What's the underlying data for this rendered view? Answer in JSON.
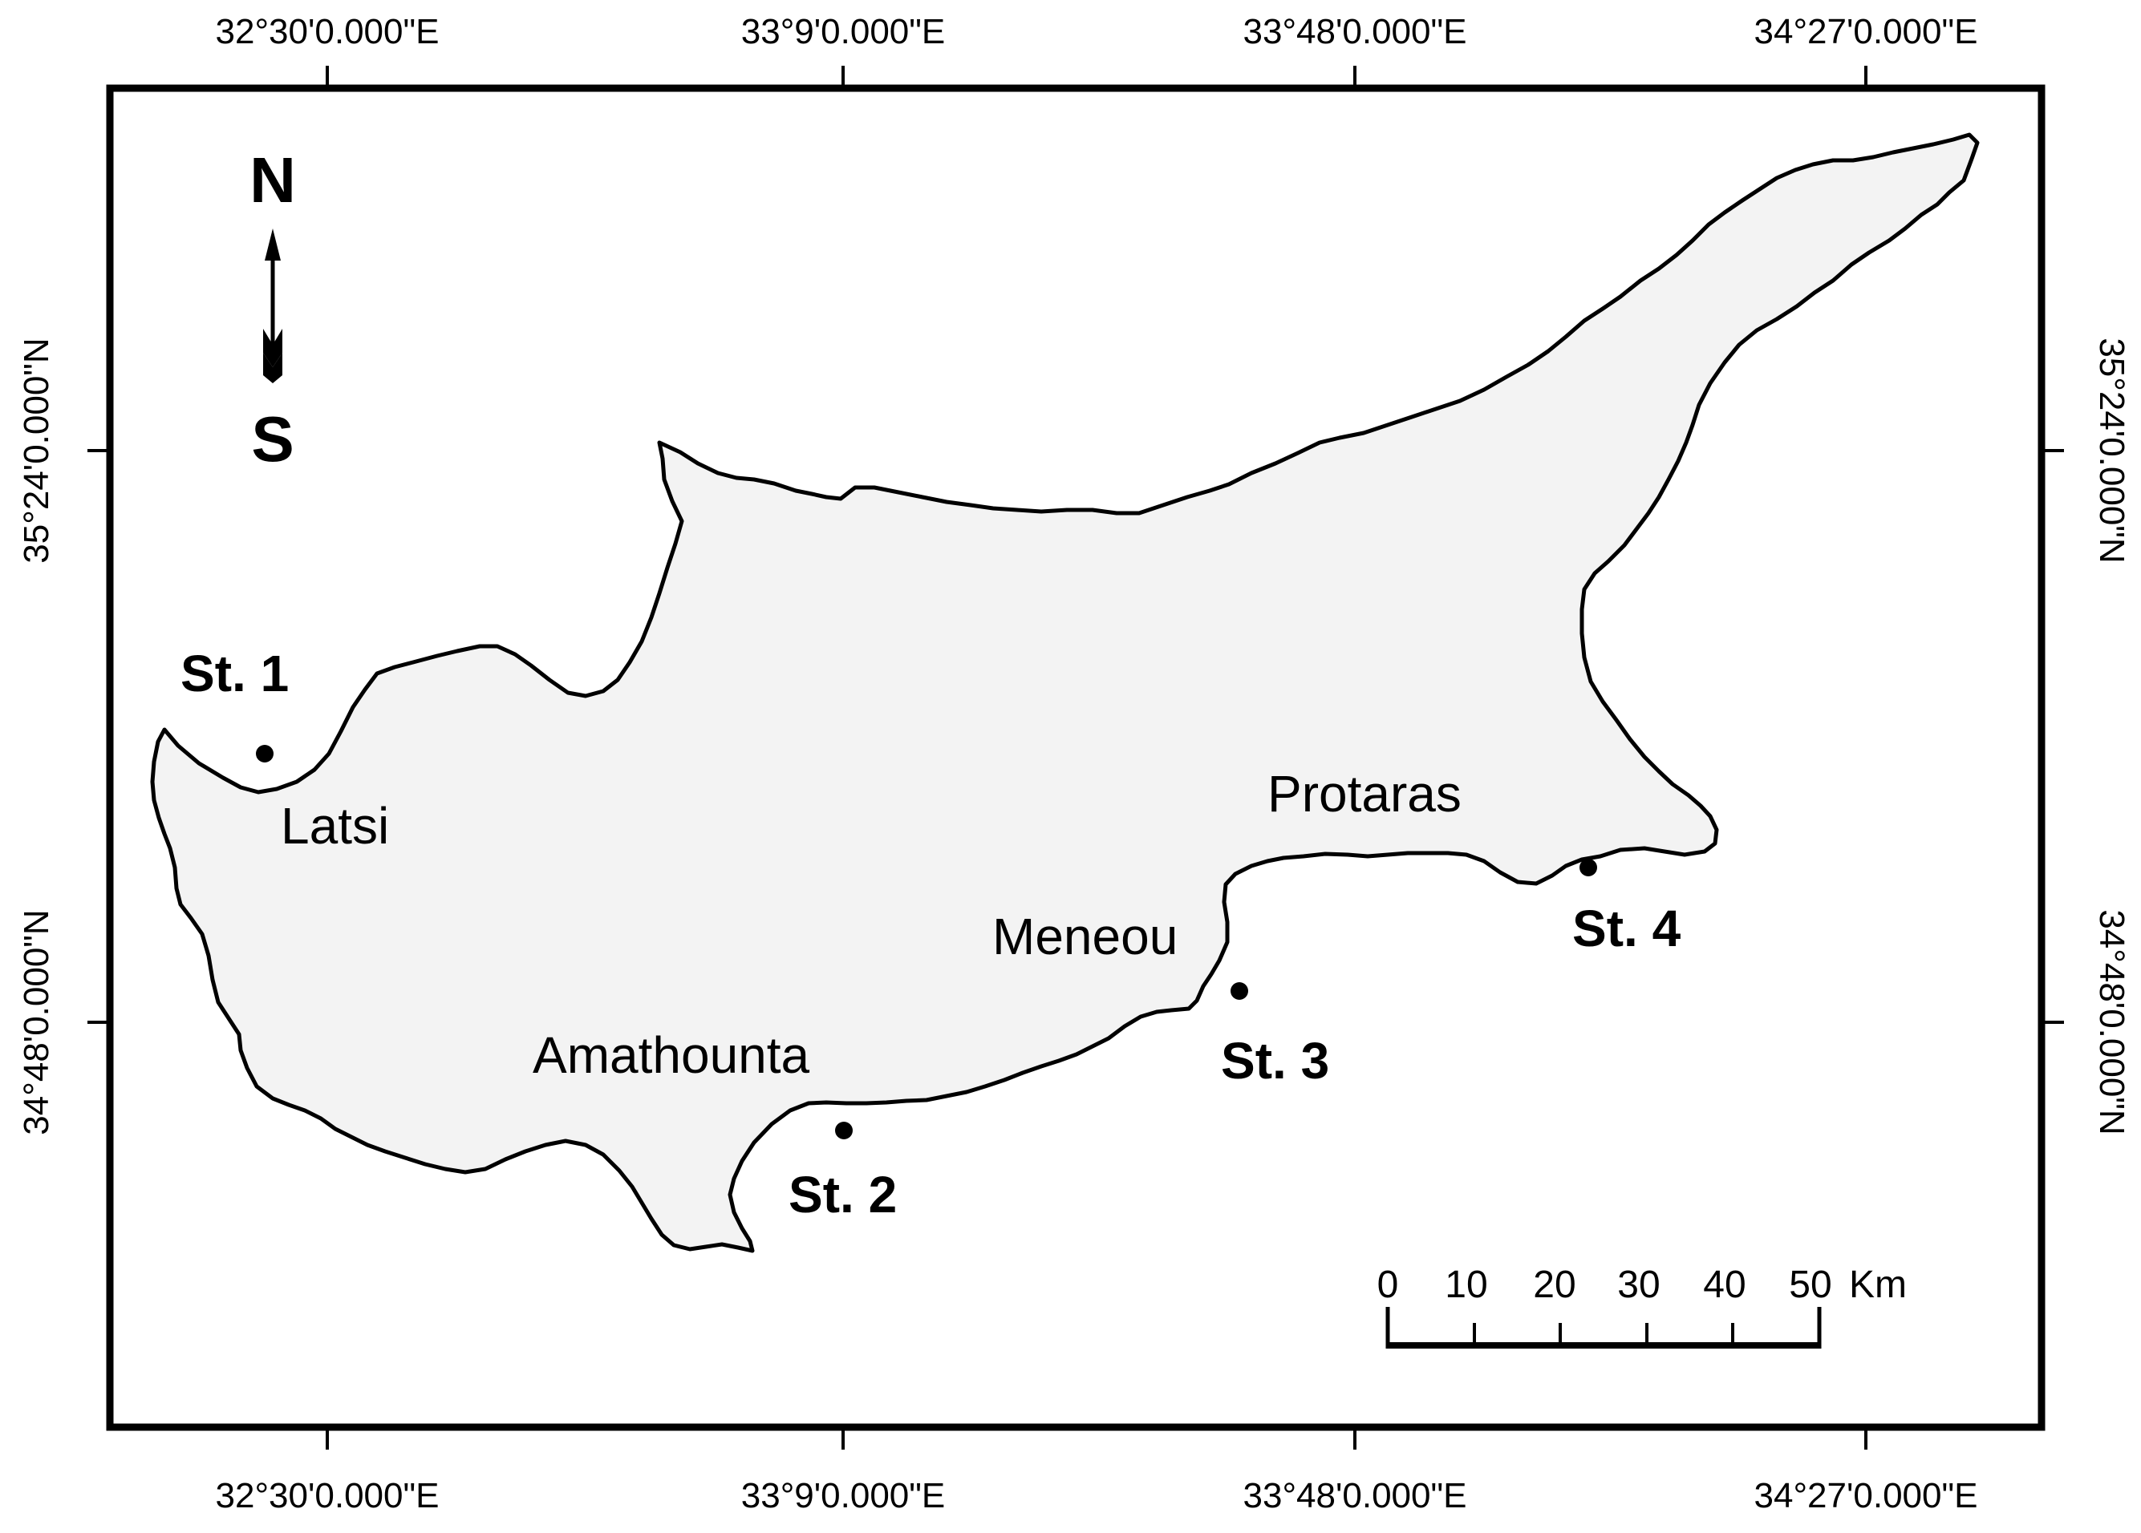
{
  "map": {
    "longitude_labels": [
      "32°30'0.000\"E",
      "33°9'0.000\"E",
      "33°48'0.000\"E",
      "34°27'0.000\"E"
    ],
    "latitude_labels": [
      "35°24'0.000\"N",
      "34°48'0.000\"N"
    ],
    "compass": {
      "north": "N",
      "south": "S"
    },
    "places": {
      "latsi": "Latsi",
      "amathounta": "Amathounta",
      "meneou": "Meneou",
      "protaras": "Protaras"
    },
    "stations": {
      "st1": "St. 1",
      "st2": "St. 2",
      "st3": "St. 3",
      "st4": "St. 4"
    },
    "scale_bar": {
      "ticks": [
        "0",
        "10",
        "20",
        "30",
        "40",
        "50"
      ],
      "unit": "Km"
    },
    "colors": {
      "land": "#f3f3f3",
      "outline": "#000000",
      "background": "#ffffff"
    }
  }
}
